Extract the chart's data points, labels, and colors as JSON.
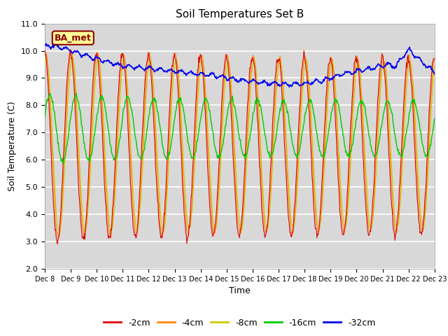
{
  "title": "Soil Temperatures Set B",
  "xlabel": "Time",
  "ylabel": "Soil Temperature (C)",
  "ylim": [
    2.0,
    11.0
  ],
  "yticks": [
    2.0,
    3.0,
    4.0,
    5.0,
    6.0,
    7.0,
    8.0,
    9.0,
    10.0,
    11.0
  ],
  "axes_bg_color": "#d8d8d8",
  "grid_color": "#ebebeb",
  "annotation_text": "BA_met",
  "annotation_bg": "#ffff99",
  "annotation_border": "#8B0000",
  "annotation_text_color": "#8B0000",
  "depths": [
    "-2cm",
    "-4cm",
    "-8cm",
    "-16cm",
    "-32cm"
  ],
  "colors": [
    "#dd0000",
    "#ff8800",
    "#cccc00",
    "#00cc00",
    "#0000ee"
  ],
  "n_points": 720,
  "legend_ncol": 5
}
